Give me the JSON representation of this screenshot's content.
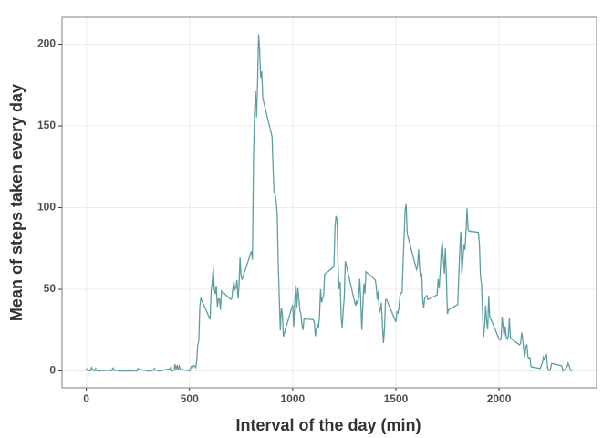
{
  "chart_data": {
    "type": "line",
    "xlabel": "Interval of the day (min)",
    "ylabel": "Mean of steps taken every day",
    "x": [
      0,
      5,
      10,
      15,
      20,
      25,
      30,
      35,
      40,
      45,
      50,
      55,
      100,
      105,
      110,
      115,
      120,
      125,
      130,
      135,
      140,
      145,
      150,
      155,
      200,
      205,
      210,
      215,
      220,
      225,
      230,
      235,
      240,
      245,
      250,
      255,
      300,
      305,
      310,
      315,
      320,
      325,
      330,
      335,
      340,
      345,
      350,
      355,
      400,
      405,
      410,
      415,
      420,
      425,
      430,
      435,
      440,
      445,
      450,
      455,
      500,
      505,
      510,
      515,
      520,
      525,
      530,
      535,
      540,
      545,
      550,
      555,
      600,
      605,
      610,
      615,
      620,
      625,
      630,
      635,
      640,
      645,
      650,
      655,
      700,
      705,
      710,
      715,
      720,
      725,
      730,
      735,
      740,
      745,
      750,
      755,
      800,
      805,
      810,
      815,
      820,
      825,
      830,
      835,
      840,
      845,
      850,
      855,
      900,
      905,
      910,
      915,
      920,
      925,
      930,
      935,
      940,
      945,
      950,
      955,
      1000,
      1005,
      1010,
      1015,
      1020,
      1025,
      1030,
      1035,
      1040,
      1045,
      1050,
      1055,
      1100,
      1105,
      1110,
      1115,
      1120,
      1125,
      1130,
      1135,
      1140,
      1145,
      1150,
      1155,
      1200,
      1205,
      1210,
      1215,
      1220,
      1225,
      1230,
      1235,
      1240,
      1245,
      1250,
      1255,
      1300,
      1305,
      1310,
      1315,
      1320,
      1325,
      1330,
      1335,
      1340,
      1345,
      1350,
      1355,
      1400,
      1405,
      1410,
      1415,
      1420,
      1425,
      1430,
      1435,
      1440,
      1445,
      1450,
      1455,
      1500,
      1505,
      1510,
      1515,
      1520,
      1525,
      1530,
      1535,
      1540,
      1545,
      1550,
      1555,
      1600,
      1605,
      1610,
      1615,
      1620,
      1625,
      1630,
      1635,
      1640,
      1645,
      1650,
      1655,
      1700,
      1705,
      1710,
      1715,
      1720,
      1725,
      1730,
      1735,
      1740,
      1745,
      1750,
      1755,
      1800,
      1805,
      1810,
      1815,
      1820,
      1825,
      1830,
      1835,
      1840,
      1845,
      1850,
      1855,
      1900,
      1905,
      1910,
      1915,
      1920,
      1925,
      1930,
      1935,
      1940,
      1945,
      1950,
      1955,
      2000,
      2005,
      2010,
      2015,
      2020,
      2025,
      2030,
      2035,
      2040,
      2045,
      2050,
      2055,
      2100,
      2105,
      2110,
      2115,
      2120,
      2125,
      2130,
      2135,
      2140,
      2145,
      2150,
      2155,
      2200,
      2205,
      2210,
      2215,
      2220,
      2225,
      2230,
      2235,
      2240,
      2245,
      2250,
      2255,
      2300,
      2305,
      2310,
      2315,
      2320,
      2325,
      2330,
      2335,
      2340,
      2345,
      2350,
      2355
    ],
    "series": [
      {
        "name": "mean steps",
        "color": "#5f9ea0",
        "values": [
          1.7,
          0.3,
          0.1,
          0.2,
          0.1,
          2.1,
          0.5,
          0.9,
          0,
          1.5,
          0.4,
          0,
          0.3,
          0.7,
          0.2,
          0.3,
          0,
          1.1,
          1.8,
          0.2,
          0.2,
          0.4,
          0.3,
          0,
          0,
          0,
          1.1,
          0,
          0,
          0.1,
          0,
          0.2,
          0,
          0,
          1.5,
          0.9,
          0,
          0,
          0,
          0,
          0.2,
          0.6,
          1.6,
          0.6,
          0.5,
          0.1,
          0,
          0,
          1.2,
          0.9,
          2.6,
          0,
          0.3,
          0.4,
          4.1,
          0.7,
          3.5,
          0.8,
          3.1,
          1.1,
          0,
          1.6,
          3,
          2.2,
          3.3,
          3,
          2.1,
          6.1,
          16,
          18.3,
          39.5,
          44.5,
          31.5,
          49.3,
          53.8,
          63.5,
          50,
          47.1,
          52.2,
          39.3,
          44,
          44.2,
          37.4,
          49,
          43.8,
          44.4,
          50.5,
          54.5,
          49.9,
          51,
          55.7,
          44.3,
          52.3,
          69.5,
          57.8,
          56.2,
          73.4,
          68.2,
          129.4,
          157.5,
          171.2,
          155.4,
          177.3,
          206.2,
          195.9,
          179.6,
          183.4,
          167,
          143.5,
          124,
          109.1,
          108.1,
          103.7,
          95.9,
          66.2,
          45.2,
          24.8,
          38.8,
          35,
          21.1,
          40.6,
          27,
          42.4,
          52.7,
          38.9,
          50.8,
          44.3,
          37.4,
          34.7,
          28.3,
          25.1,
          31.9,
          31.4,
          29.7,
          21.3,
          25.5,
          28.4,
          26.5,
          33.4,
          50,
          42,
          44.6,
          46,
          59.2,
          63.9,
          87.7,
          94.8,
          92.8,
          63.4,
          50.2,
          54.5,
          32.4,
          26.5,
          37.7,
          45,
          67.3,
          42.3,
          39.9,
          43.3,
          40.9,
          46.2,
          56.4,
          42.8,
          25.1,
          40,
          53.5,
          47.3,
          60.8,
          55.8,
          51.9,
          43.6,
          48.7,
          35.5,
          37.5,
          41.8,
          27.5,
          17.1,
          26.1,
          43.6,
          43.8,
          30,
          36.1,
          35.5,
          38.8,
          46,
          47.8,
          48.1,
          65.3,
          82.9,
          98.7,
          102.1,
          84,
          62.1,
          64.1,
          74.5,
          63.2,
          56.9,
          59.8,
          43.9,
          38.6,
          44.7,
          45.5,
          46.2,
          43.7,
          46.6,
          56.3,
          50.7,
          61.2,
          73.4,
          79,
          68.9,
          59.7,
          75.1,
          56.5,
          34.8,
          37.5,
          40.7,
          58,
          74.7,
          85.3,
          59.3,
          67.8,
          77.7,
          74.2,
          85.3,
          99.5,
          86.6,
          85.6,
          84.9,
          77.8,
          58,
          53.4,
          36.3,
          20.7,
          27.4,
          40,
          30.2,
          25.5,
          46,
          33.5,
          19.6,
          19,
          19.3,
          33.3,
          26.8,
          21.2,
          27.3,
          21.3,
          19.5,
          21.3,
          32.3,
          20.2,
          15.9,
          17.2,
          23.5,
          19.2,
          12.5,
          8,
          14.7,
          16.3,
          8.7,
          7.8,
          8.1,
          2.6,
          1.5,
          3.7,
          4.8,
          8.5,
          7.1,
          8.7,
          9.8,
          2.2,
          0.3,
          0.1,
          1.6,
          4.6,
          3.3,
          2.8,
          0,
          0.8,
          1,
          1.6,
          2.6,
          4.7,
          3.3,
          0.6,
          0.2,
          1.1
        ]
      }
    ],
    "xlim": [
      -117.75,
      2472.75
    ],
    "xticks": [
      0,
      500,
      1000,
      1500,
      2000
    ],
    "ylim": [
      -10.3,
      216.5
    ],
    "yticks": [
      0,
      50,
      100,
      150,
      200
    ],
    "grid": true
  }
}
